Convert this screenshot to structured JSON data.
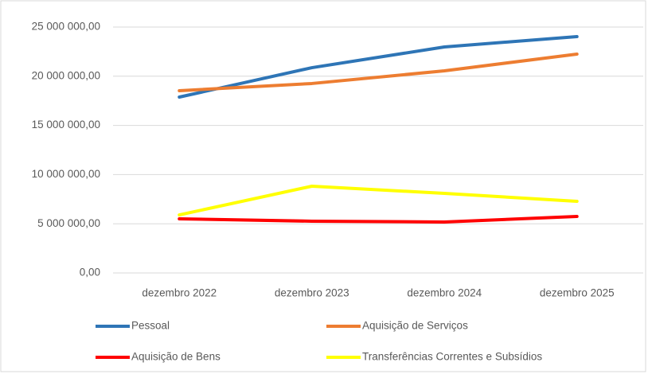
{
  "chart_data": {
    "type": "line",
    "categories": [
      "dezembro 2022",
      "dezembro 2023",
      "dezembro 2024",
      "dezembro 2025"
    ],
    "series": [
      {
        "name": "Pessoal",
        "color": "#2e75b6",
        "values": [
          17880000,
          20870000,
          22980000,
          24030000
        ]
      },
      {
        "name": "Aquisição de Serviços",
        "color": "#ed7d31",
        "values": [
          18530000,
          19260000,
          20550000,
          22250000
        ]
      },
      {
        "name": "Aquisição de Bens",
        "color": "#ff0000",
        "values": [
          5500000,
          5260000,
          5180000,
          5740000
        ]
      },
      {
        "name": "Transferências Correntes e Subsídios",
        "color": "#ffff00",
        "values": [
          5900000,
          8820000,
          8090000,
          7280000
        ]
      }
    ],
    "ylim": [
      0,
      25000000
    ],
    "yticks": [
      {
        "value": 0,
        "label": "0,00"
      },
      {
        "value": 5000000,
        "label": "5 000 000,00"
      },
      {
        "value": 10000000,
        "label": "10 000 000,00"
      },
      {
        "value": 15000000,
        "label": "15 000 000,00"
      },
      {
        "value": 20000000,
        "label": "20 000 000,00"
      },
      {
        "value": 25000000,
        "label": "25 000 000,00"
      }
    ],
    "grid": true,
    "legend": "bottom"
  }
}
